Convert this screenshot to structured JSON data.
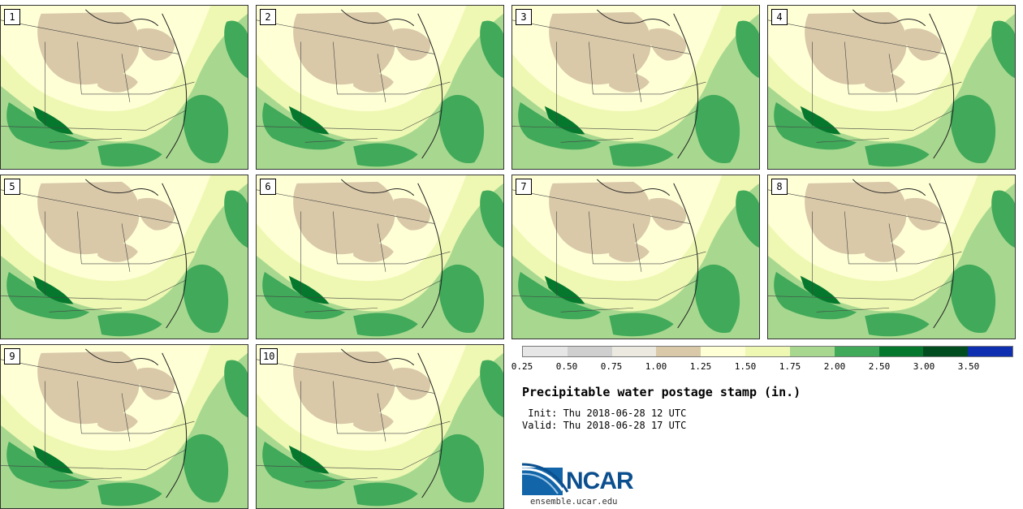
{
  "panels": [
    {
      "label": "1"
    },
    {
      "label": "2"
    },
    {
      "label": "3"
    },
    {
      "label": "4"
    },
    {
      "label": "5"
    },
    {
      "label": "6"
    },
    {
      "label": "7"
    },
    {
      "label": "8"
    },
    {
      "label": "9"
    },
    {
      "label": "10"
    }
  ],
  "legend": {
    "tick_labels": [
      "0.25",
      "0.50",
      "0.75",
      "1.00",
      "1.25",
      "1.50",
      "1.75",
      "2.00",
      "2.50",
      "3.00",
      "3.50"
    ],
    "colors": [
      "#e6e6e6",
      "#cfcfcf",
      "#ebe9e0",
      "#d9c9a9",
      "#ffffd6",
      "#eef8b2",
      "#a8d88f",
      "#41a95a",
      "#06782e",
      "#024d20",
      "#0d2fb0"
    ]
  },
  "title": "Precipitable water postage stamp (in.)",
  "init": " Init: Thu 2018-06-28 12 UTC",
  "valid": "Valid: Thu 2018-06-28 17 UTC",
  "logo_text": "NCAR",
  "site": "ensemble.ucar.edu"
}
